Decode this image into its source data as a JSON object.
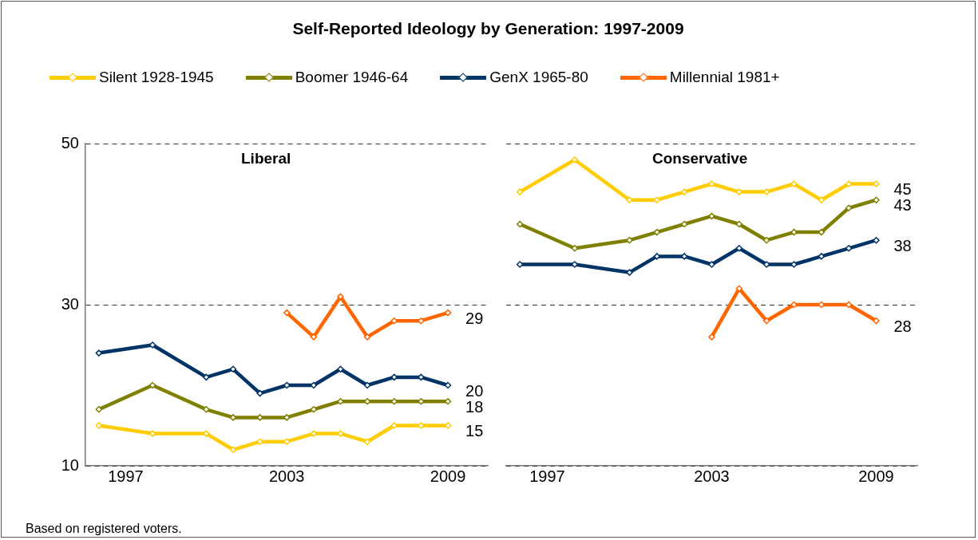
{
  "chart_data": [
    {
      "type": "line",
      "title": "Self-Reported Ideology by Generation: 1997-2009",
      "subtitle": "Liberal",
      "x": [
        1996,
        1998,
        2000,
        2001,
        2002,
        2003,
        2004,
        2005,
        2006,
        2007,
        2008,
        2009
      ],
      "xlim": [
        1995.5,
        2010.5
      ],
      "xticks": [
        1997,
        2003,
        2009
      ],
      "ylim": [
        10,
        50
      ],
      "yticks": [
        10,
        30,
        50
      ],
      "grid": "y",
      "legend": "top",
      "marker": "diamond",
      "line_style": "solid",
      "annotations": [
        "Based on registered voters."
      ],
      "series": [
        {
          "name": "Silent 1928-1945",
          "color": "#ffcc00",
          "values": [
            15,
            14,
            14,
            12,
            13,
            13,
            14,
            14,
            13,
            15,
            15,
            15
          ],
          "value_labels": [
            null,
            null,
            null,
            null,
            null,
            null,
            null,
            null,
            null,
            null,
            null,
            "15"
          ]
        },
        {
          "name": "Boomer 1946-64",
          "color": "#808000",
          "values": [
            17,
            20,
            17,
            16,
            16,
            16,
            17,
            18,
            18,
            18,
            18,
            18
          ],
          "value_labels": [
            null,
            null,
            null,
            null,
            null,
            null,
            null,
            null,
            null,
            null,
            null,
            "18"
          ]
        },
        {
          "name": "GenX 1965-80",
          "color": "#003366",
          "values": [
            24,
            25,
            21,
            22,
            19,
            20,
            20,
            22,
            20,
            21,
            21,
            20
          ],
          "value_labels": [
            null,
            null,
            null,
            null,
            null,
            null,
            null,
            null,
            null,
            null,
            null,
            "20"
          ]
        },
        {
          "name": "Millennial 1981+",
          "color": "#ff6600",
          "values": [
            null,
            null,
            null,
            null,
            null,
            29,
            26,
            31,
            26,
            28,
            28,
            29
          ],
          "value_labels": [
            null,
            null,
            null,
            null,
            null,
            null,
            null,
            null,
            null,
            null,
            null,
            "29"
          ]
        }
      ]
    },
    {
      "type": "line",
      "subtitle": "Conservative",
      "x": [
        1996,
        1998,
        2000,
        2001,
        2002,
        2003,
        2004,
        2005,
        2006,
        2007,
        2008,
        2009
      ],
      "xlim": [
        1995.5,
        2010.5
      ],
      "xticks": [
        1997,
        2003,
        2009
      ],
      "ylim": [
        10,
        50
      ],
      "yticks": [
        10,
        30,
        50
      ],
      "grid": "y",
      "tick_labels": "x",
      "marker": "diamond",
      "line_style": "solid",
      "series": [
        {
          "color": "#ffcc00",
          "values": [
            44,
            48,
            43,
            43,
            44,
            45,
            44,
            44,
            45,
            43,
            45,
            45
          ],
          "value_labels": [
            null,
            null,
            null,
            null,
            null,
            null,
            null,
            null,
            null,
            null,
            null,
            "45"
          ]
        },
        {
          "color": "#808000",
          "values": [
            40,
            37,
            38,
            39,
            40,
            41,
            40,
            38,
            39,
            39,
            42,
            43
          ],
          "value_labels": [
            null,
            null,
            null,
            null,
            null,
            null,
            null,
            null,
            null,
            null,
            null,
            "43"
          ]
        },
        {
          "color": "#003366",
          "values": [
            35,
            35,
            34,
            36,
            36,
            35,
            37,
            35,
            35,
            36,
            37,
            38
          ],
          "value_labels": [
            null,
            null,
            null,
            null,
            null,
            null,
            null,
            null,
            null,
            null,
            null,
            "38"
          ]
        },
        {
          "color": "#ff6600",
          "values": [
            null,
            null,
            null,
            null,
            null,
            26,
            32,
            28,
            30,
            30,
            30,
            28
          ],
          "value_labels": [
            null,
            null,
            null,
            null,
            null,
            null,
            null,
            null,
            null,
            null,
            null,
            "28"
          ]
        }
      ]
    }
  ]
}
